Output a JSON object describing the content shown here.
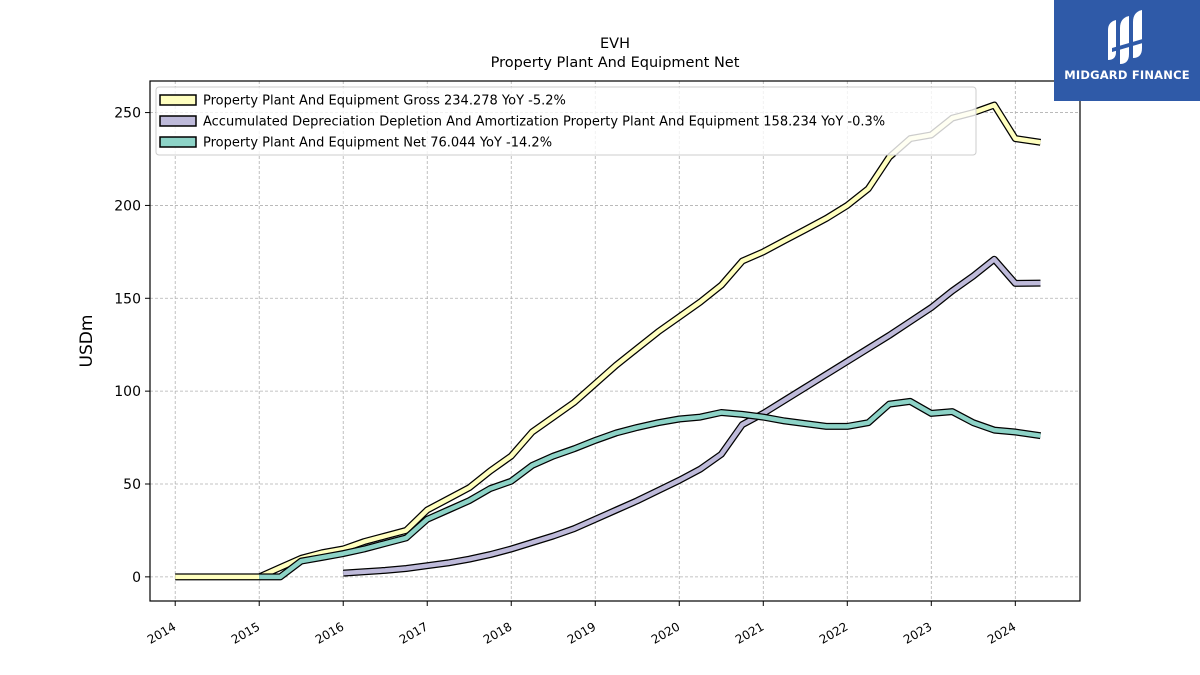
{
  "chart_data": {
    "type": "line",
    "title": "EVH",
    "subtitle": "Property Plant And Equipment Net",
    "ylabel": "USDm",
    "xlabel": "",
    "ylim": [
      -13,
      267
    ],
    "xlim": [
      2013.7,
      2024.77
    ],
    "yticks": [
      0,
      50,
      100,
      150,
      200,
      250
    ],
    "xticks": [
      "2014",
      "2015",
      "2016",
      "2017",
      "2018",
      "2019",
      "2020",
      "2021",
      "2022",
      "2023",
      "2024"
    ],
    "grid": true,
    "legend_position": "top-left",
    "series": [
      {
        "name": "Property Plant And Equipment Gross",
        "legend_label": "Property Plant And Equipment Gross  234.278 YoY -5.2%",
        "color": "#ffffbf",
        "x": [
          2014.0,
          2014.25,
          2014.5,
          2014.75,
          2015.0,
          2015.25,
          2015.5,
          2015.75,
          2016.0,
          2016.25,
          2016.5,
          2016.75,
          2017.0,
          2017.25,
          2017.5,
          2017.75,
          2018.0,
          2018.25,
          2018.5,
          2018.75,
          2019.0,
          2019.25,
          2019.5,
          2019.75,
          2020.0,
          2020.25,
          2020.5,
          2020.75,
          2021.0,
          2021.25,
          2021.5,
          2021.75,
          2022.0,
          2022.25,
          2022.5,
          2022.75,
          2023.0,
          2023.25,
          2023.5,
          2023.75,
          2024.0,
          2024.3
        ],
        "y": [
          0,
          0,
          0,
          0,
          0,
          5,
          10,
          13,
          15,
          19,
          22,
          25,
          36,
          42,
          48,
          57,
          65,
          78,
          86,
          94,
          104,
          114,
          123,
          132,
          140,
          148,
          157,
          170,
          175,
          181,
          187,
          193,
          200,
          209,
          226,
          236,
          238,
          247,
          250,
          254,
          236,
          234
        ]
      },
      {
        "name": "Accumulated Depreciation Depletion And Amortization Property Plant And Equipment",
        "legend_label": "Accumulated Depreciation Depletion And Amortization Property Plant And Equipment  158.234 YoY -0.3%",
        "color": "#bebada",
        "x": [
          2016.0,
          2016.25,
          2016.5,
          2016.75,
          2017.0,
          2017.25,
          2017.5,
          2017.75,
          2018.0,
          2018.25,
          2018.5,
          2018.75,
          2019.0,
          2019.25,
          2019.5,
          2019.75,
          2020.0,
          2020.25,
          2020.5,
          2020.75,
          2021.0,
          2021.25,
          2021.5,
          2021.75,
          2022.0,
          2022.25,
          2022.5,
          2022.75,
          2023.0,
          2023.25,
          2023.5,
          2023.75,
          2024.0,
          2024.3
        ],
        "y": [
          2,
          2.8,
          3.5,
          4.5,
          6,
          7.5,
          9.5,
          12,
          15,
          18.5,
          22,
          26,
          31,
          36,
          41,
          46.5,
          52,
          58,
          66,
          82,
          88,
          95,
          102,
          109,
          116,
          123,
          130,
          137.5,
          145,
          154,
          162,
          171,
          158,
          158.2
        ]
      },
      {
        "name": "Property Plant And Equipment Net",
        "legend_label": "Property Plant And Equipment Net  76.044 YoY -14.2%",
        "color": "#8dd3c7",
        "x": [
          2015.0,
          2015.25,
          2015.5,
          2015.75,
          2016.0,
          2016.25,
          2016.5,
          2016.75,
          2017.0,
          2017.25,
          2017.5,
          2017.75,
          2018.0,
          2018.25,
          2018.5,
          2018.75,
          2019.0,
          2019.25,
          2019.5,
          2019.75,
          2020.0,
          2020.25,
          2020.5,
          2020.75,
          2021.0,
          2021.25,
          2021.5,
          2021.75,
          2022.0,
          2022.25,
          2022.5,
          2022.75,
          2023.0,
          2023.25,
          2023.5,
          2023.75,
          2024.0,
          2024.3
        ],
        "y": [
          0,
          0,
          8.5,
          10.5,
          12.5,
          15,
          18,
          21,
          31,
          36,
          41,
          47.5,
          51.5,
          60,
          65,
          69,
          73.5,
          77.5,
          80.5,
          83,
          85,
          86,
          88.5,
          87.5,
          86,
          84,
          82.5,
          81,
          81,
          83,
          93,
          94.5,
          88,
          89,
          83,
          79,
          78,
          76
        ]
      }
    ]
  },
  "logo": {
    "text": "MIDGARD FINANCE",
    "icon": "midgard-logo-icon",
    "color": "#2f5aa8"
  }
}
